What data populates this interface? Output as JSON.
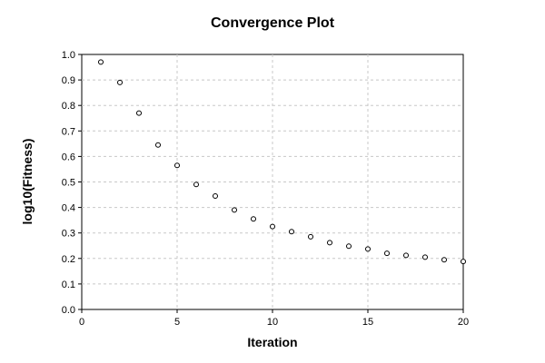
{
  "chart_data": {
    "type": "scatter",
    "title": "Convergence Plot",
    "xlabel": "Iteration",
    "ylabel": "log10(Fitness)",
    "xlim": [
      0,
      20
    ],
    "ylim": [
      0,
      1.0
    ],
    "xticks": [
      "0",
      "5",
      "10",
      "15",
      "20"
    ],
    "yticks": [
      "0.0",
      "0.1",
      "0.2",
      "0.3",
      "0.4",
      "0.5",
      "0.6",
      "0.7",
      "0.8",
      "0.9",
      "1.0"
    ],
    "grid": true,
    "series": [
      {
        "x": [
          1,
          2,
          3,
          4,
          5,
          6,
          7,
          8,
          9,
          10,
          11,
          12,
          13,
          14,
          15,
          16,
          17,
          18,
          19,
          20
        ],
        "y": [
          0.97,
          0.89,
          0.77,
          0.645,
          0.565,
          0.49,
          0.445,
          0.39,
          0.355,
          0.325,
          0.305,
          0.285,
          0.262,
          0.248,
          0.237,
          0.22,
          0.212,
          0.205,
          0.195,
          0.188
        ]
      }
    ]
  }
}
